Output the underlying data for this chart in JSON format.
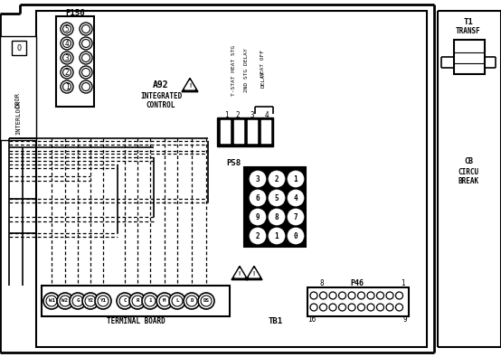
{
  "bg": "#ffffff",
  "black": "#000000",
  "p156_label": "P156",
  "a92_lines": [
    "A92",
    "INTEGRATED",
    "CONTROL"
  ],
  "tstat_labels": [
    "T-STAT HEAT STG",
    "2ND STG DELAY",
    "HEAT OFF\nDELAY"
  ],
  "relay_nums": [
    "1",
    "2",
    "3",
    "4"
  ],
  "p58_label": "P58",
  "p58_grid": [
    [
      "3",
      "2",
      "1"
    ],
    [
      "6",
      "5",
      "4"
    ],
    [
      "9",
      "8",
      "7"
    ],
    [
      "2",
      "1",
      "0"
    ]
  ],
  "p46_label": "P46",
  "p46_top_nums": [
    "8",
    "",
    "",
    "",
    "",
    "",
    "",
    "",
    "1"
  ],
  "p46_bot_nums": [
    "16",
    "",
    "",
    "",
    "",
    "",
    "",
    "",
    "9"
  ],
  "tb_labels": [
    "W1",
    "W2",
    "G",
    "Y2",
    "Y1",
    "C",
    "R",
    "1",
    "M",
    "L",
    "D",
    "DS"
  ],
  "tb_label_text": "TERMINAL BOARD",
  "tb1_text": "TB1",
  "t1_lines": [
    "T1",
    "TRANSF"
  ],
  "cb_lines": [
    "CB",
    "CIRCU",
    "BREAK"
  ]
}
